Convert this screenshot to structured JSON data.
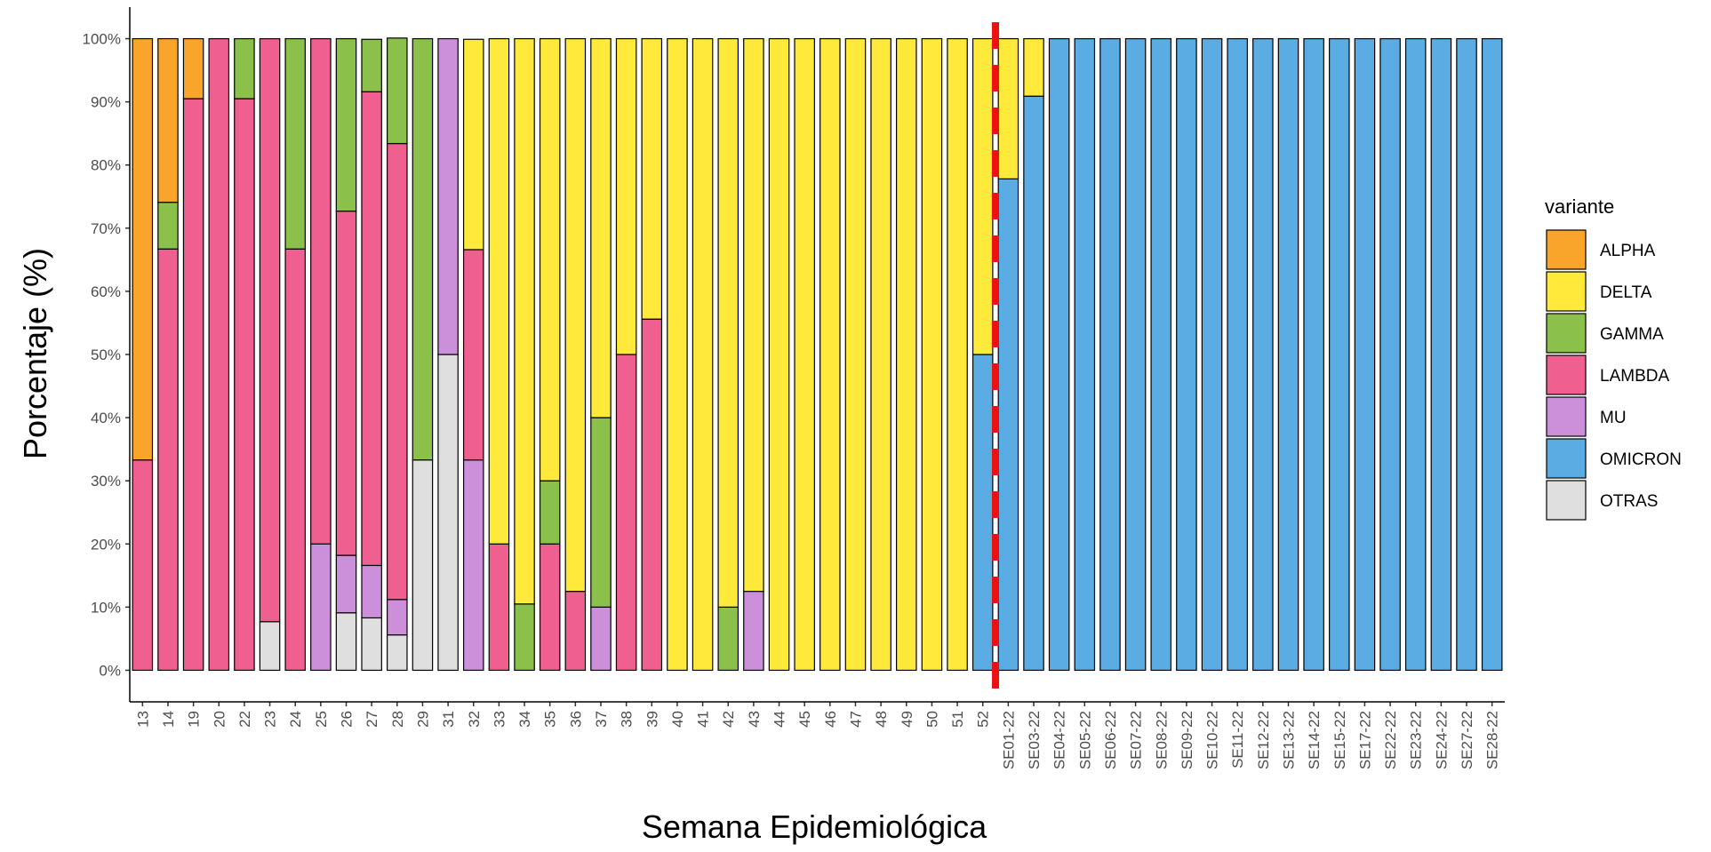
{
  "chart_data": {
    "type": "stacked_bar",
    "x_label": "Semana Epidemiológica",
    "y_label": "Porcentaje (%)",
    "legend_title": "variante",
    "categories": [
      "13",
      "14",
      "19",
      "20",
      "22",
      "23",
      "24",
      "25",
      "26",
      "27",
      "28",
      "29",
      "31",
      "32",
      "33",
      "34",
      "35",
      "36",
      "37",
      "38",
      "39",
      "40",
      "41",
      "42",
      "43",
      "44",
      "45",
      "46",
      "47",
      "48",
      "49",
      "50",
      "51",
      "52",
      "SE01-22",
      "SE03-22",
      "SE04-22",
      "SE05-22",
      "SE06-22",
      "SE07-22",
      "SE08-22",
      "SE09-22",
      "SE10-22",
      "SE11-22",
      "SE12-22",
      "SE13-22",
      "SE14-22",
      "SE15-22",
      "SE17-22",
      "SE22-22",
      "SE23-22",
      "SE24-22",
      "SE27-22",
      "SE28-22"
    ],
    "series": [
      {
        "name": "ALPHA",
        "color": "#F9A52B",
        "values": [
          66.7,
          25.9,
          9.5,
          0,
          0,
          0,
          0,
          0,
          0,
          0,
          0,
          0,
          0,
          0,
          0,
          0,
          0,
          0,
          0,
          0,
          0,
          0,
          0,
          0,
          0,
          0,
          0,
          0,
          0,
          0,
          0,
          0,
          0,
          0,
          0,
          0,
          0,
          0,
          0,
          0,
          0,
          0,
          0,
          0,
          0,
          0,
          0,
          0,
          0,
          0,
          0,
          0,
          0,
          0
        ]
      },
      {
        "name": "DELTA",
        "color": "#FFE93B",
        "values": [
          0,
          0,
          0,
          0,
          0,
          0,
          0,
          0,
          0,
          0,
          0,
          0,
          0,
          33.3,
          80,
          89.5,
          70,
          87.5,
          60,
          50,
          44.4,
          100,
          100,
          90,
          87.5,
          100,
          100,
          100,
          100,
          100,
          100,
          100,
          100,
          50,
          22.2,
          9.1,
          0,
          0,
          0,
          0,
          0,
          0,
          0,
          0,
          0,
          0,
          0,
          0,
          0,
          0,
          0,
          0,
          0,
          0
        ]
      },
      {
        "name": "GAMMA",
        "color": "#8BC04A",
        "values": [
          0,
          7.4,
          0,
          0,
          9.5,
          0,
          33.3,
          0,
          27.3,
          8.3,
          16.7,
          66.7,
          0,
          0,
          0,
          10.5,
          10,
          0,
          30,
          0,
          0,
          0,
          0,
          10,
          0,
          0,
          0,
          0,
          0,
          0,
          0,
          0,
          0,
          0,
          0,
          0,
          0,
          0,
          0,
          0,
          0,
          0,
          0,
          0,
          0,
          0,
          0,
          0,
          0,
          0,
          0,
          0,
          0,
          0
        ]
      },
      {
        "name": "LAMBDA",
        "color": "#EF6090",
        "values": [
          33.3,
          66.7,
          90.5,
          100,
          90.5,
          92.3,
          66.7,
          80,
          54.5,
          75,
          72.2,
          0,
          0,
          33.3,
          20,
          0,
          20,
          12.5,
          0,
          50,
          55.6,
          0,
          0,
          0,
          0,
          0,
          0,
          0,
          0,
          0,
          0,
          0,
          0,
          0,
          0,
          0,
          0,
          0,
          0,
          0,
          0,
          0,
          0,
          0,
          0,
          0,
          0,
          0,
          0,
          0,
          0,
          0,
          0,
          0
        ]
      },
      {
        "name": "MU",
        "color": "#CC8FDA",
        "values": [
          0,
          0,
          0,
          0,
          0,
          0,
          0,
          20,
          9.1,
          8.3,
          5.6,
          0,
          50,
          33.3,
          0,
          0,
          0,
          0,
          10,
          0,
          0,
          0,
          0,
          0,
          12.5,
          0,
          0,
          0,
          0,
          0,
          0,
          0,
          0,
          0,
          0,
          0,
          0,
          0,
          0,
          0,
          0,
          0,
          0,
          0,
          0,
          0,
          0,
          0,
          0,
          0,
          0,
          0,
          0,
          0
        ]
      },
      {
        "name": "OMICRON",
        "color": "#5AACE2",
        "values": [
          0,
          0,
          0,
          0,
          0,
          0,
          0,
          0,
          0,
          0,
          0,
          0,
          0,
          0,
          0,
          0,
          0,
          0,
          0,
          0,
          0,
          0,
          0,
          0,
          0,
          0,
          0,
          0,
          0,
          0,
          0,
          0,
          0,
          50,
          77.8,
          90.9,
          100,
          100,
          100,
          100,
          100,
          100,
          100,
          100,
          100,
          100,
          100,
          100,
          100,
          100,
          100,
          100,
          100,
          100
        ]
      },
      {
        "name": "OTRAS",
        "color": "#DFDFDF",
        "values": [
          0,
          0,
          0,
          0,
          0,
          7.7,
          0,
          0,
          9.1,
          8.3,
          5.6,
          33.3,
          50,
          0,
          0,
          0,
          0,
          0,
          0,
          0,
          0,
          0,
          0,
          0,
          0,
          0,
          0,
          0,
          0,
          0,
          0,
          0,
          0,
          0,
          0,
          0,
          0,
          0,
          0,
          0,
          0,
          0,
          0,
          0,
          0,
          0,
          0,
          0,
          0,
          0,
          0,
          0,
          0,
          0
        ]
      }
    ],
    "ylim": [
      -5,
      105
    ],
    "yticks": [
      {
        "value": 0,
        "label": "0%"
      },
      {
        "value": 10,
        "label": "10%"
      },
      {
        "value": 20,
        "label": "20%"
      },
      {
        "value": 30,
        "label": "30%"
      },
      {
        "value": 40,
        "label": "40%"
      },
      {
        "value": 50,
        "label": "50%"
      },
      {
        "value": 60,
        "label": "60%"
      },
      {
        "value": 70,
        "label": "70%"
      },
      {
        "value": 80,
        "label": "80%"
      },
      {
        "value": 90,
        "label": "90%"
      },
      {
        "value": 100,
        "label": "100%"
      }
    ],
    "grid": false
  }
}
